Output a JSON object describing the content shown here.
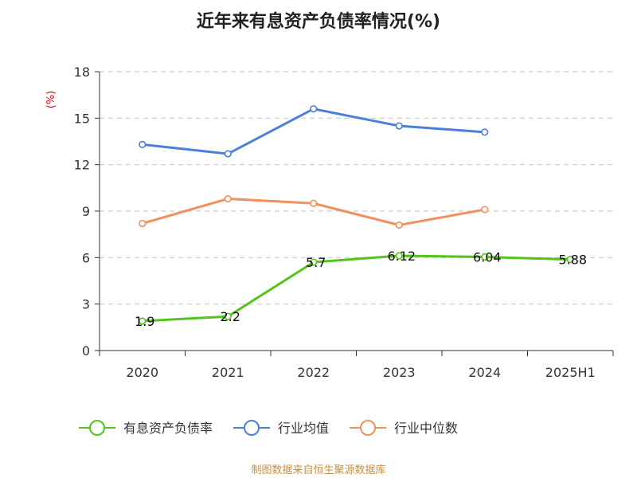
{
  "chart_data": {
    "type": "line",
    "title": "近年来有息资产负债率情况(%)",
    "ylabel": "(%)",
    "categories": [
      "2020",
      "2021",
      "2022",
      "2023",
      "2024",
      "2025H1"
    ],
    "ylim": [
      0,
      18
    ],
    "yticks": [
      0,
      3,
      6,
      9,
      12,
      15,
      18
    ],
    "grid": true,
    "legend_position": "bottom",
    "series": [
      {
        "name": "有息资产负债率",
        "color": "#52c41a",
        "values": [
          1.9,
          2.2,
          5.7,
          6.12,
          6.04,
          5.88
        ],
        "labels": [
          "1.9",
          "2.2",
          "5.7",
          "6.12",
          "6.04",
          "5.88"
        ]
      },
      {
        "name": "行业均值",
        "color": "#4a7fdc",
        "values": [
          13.3,
          12.7,
          15.6,
          14.5,
          14.1,
          null
        ]
      },
      {
        "name": "行业中位数",
        "color": "#f58d5c",
        "values": [
          8.2,
          9.8,
          9.5,
          8.1,
          9.1,
          null
        ]
      }
    ]
  },
  "source": "制图数据来自恒生聚源数据库"
}
